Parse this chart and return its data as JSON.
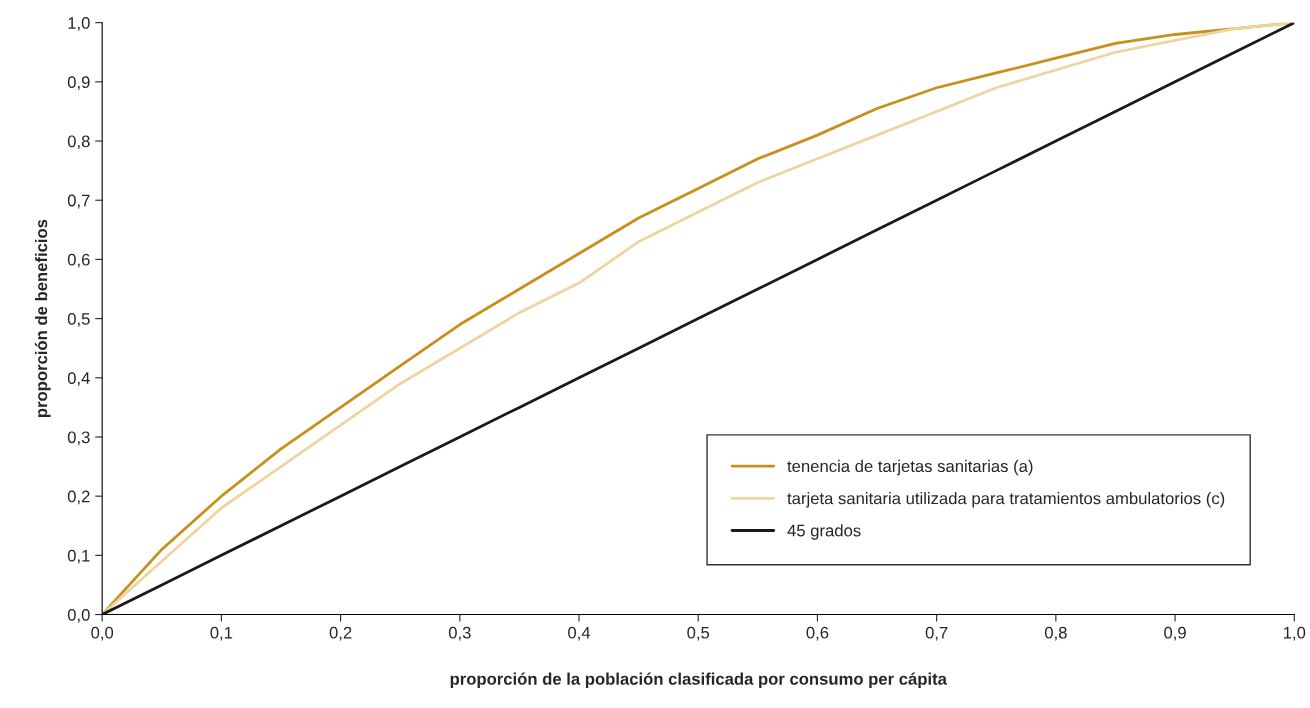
{
  "chart_data": {
    "type": "line",
    "xlabel": "proporción de la población clasificada por consumo per cápita",
    "ylabel": "proporción de beneficios",
    "x": [
      0,
      0.05,
      0.1,
      0.15,
      0.2,
      0.25,
      0.3,
      0.35,
      0.4,
      0.45,
      0.5,
      0.55,
      0.6,
      0.65,
      0.7,
      0.75,
      0.8,
      0.85,
      0.9,
      0.95,
      1
    ],
    "series": [
      {
        "name": "tenencia de tarjetas sanitarias (a)",
        "color": "#c8901a",
        "values": [
          0,
          0.11,
          0.2,
          0.28,
          0.35,
          0.42,
          0.49,
          0.55,
          0.61,
          0.67,
          0.72,
          0.77,
          0.81,
          0.855,
          0.89,
          0.915,
          0.94,
          0.965,
          0.98,
          0.99,
          1
        ]
      },
      {
        "name": "tarjeta sanitaria utilizada para tratamientos ambulatorios (c)",
        "color": "#f0d4a0",
        "values": [
          0,
          0.09,
          0.18,
          0.25,
          0.32,
          0.39,
          0.45,
          0.51,
          0.56,
          0.63,
          0.68,
          0.73,
          0.77,
          0.81,
          0.85,
          0.89,
          0.92,
          0.95,
          0.97,
          0.99,
          1
        ]
      },
      {
        "name": "45 grados",
        "color": "#1a1a1a",
        "values": [
          0,
          0.05,
          0.1,
          0.15,
          0.2,
          0.25,
          0.3,
          0.35,
          0.4,
          0.45,
          0.5,
          0.55,
          0.6,
          0.65,
          0.7,
          0.75,
          0.8,
          0.85,
          0.9,
          0.95,
          1
        ]
      }
    ],
    "xlim": [
      0,
      1
    ],
    "ylim": [
      0,
      1
    ],
    "xticks": [
      {
        "value": 0,
        "label": "0,0"
      },
      {
        "value": 0.1,
        "label": "0,1"
      },
      {
        "value": 0.2,
        "label": "0,2"
      },
      {
        "value": 0.3,
        "label": "0,3"
      },
      {
        "value": 0.4,
        "label": "0,4"
      },
      {
        "value": 0.5,
        "label": "0,5"
      },
      {
        "value": 0.6,
        "label": "0,6"
      },
      {
        "value": 0.7,
        "label": "0,7"
      },
      {
        "value": 0.8,
        "label": "0,8"
      },
      {
        "value": 0.9,
        "label": "0,9"
      },
      {
        "value": 1,
        "label": "1,0"
      }
    ],
    "yticks": [
      {
        "value": 0,
        "label": "0,0"
      },
      {
        "value": 0.1,
        "label": "0,1"
      },
      {
        "value": 0.2,
        "label": "0,2"
      },
      {
        "value": 0.3,
        "label": "0,3"
      },
      {
        "value": 0.4,
        "label": "0,4"
      },
      {
        "value": 0.5,
        "label": "0,5"
      },
      {
        "value": 0.6,
        "label": "0,6"
      },
      {
        "value": 0.7,
        "label": "0,7"
      },
      {
        "value": 0.8,
        "label": "0,8"
      },
      {
        "value": 0.9,
        "label": "0,9"
      },
      {
        "value": 1,
        "label": "1,0"
      }
    ],
    "grid": false,
    "legend": "bottom right",
    "marker": "none",
    "line_style": "solid"
  }
}
